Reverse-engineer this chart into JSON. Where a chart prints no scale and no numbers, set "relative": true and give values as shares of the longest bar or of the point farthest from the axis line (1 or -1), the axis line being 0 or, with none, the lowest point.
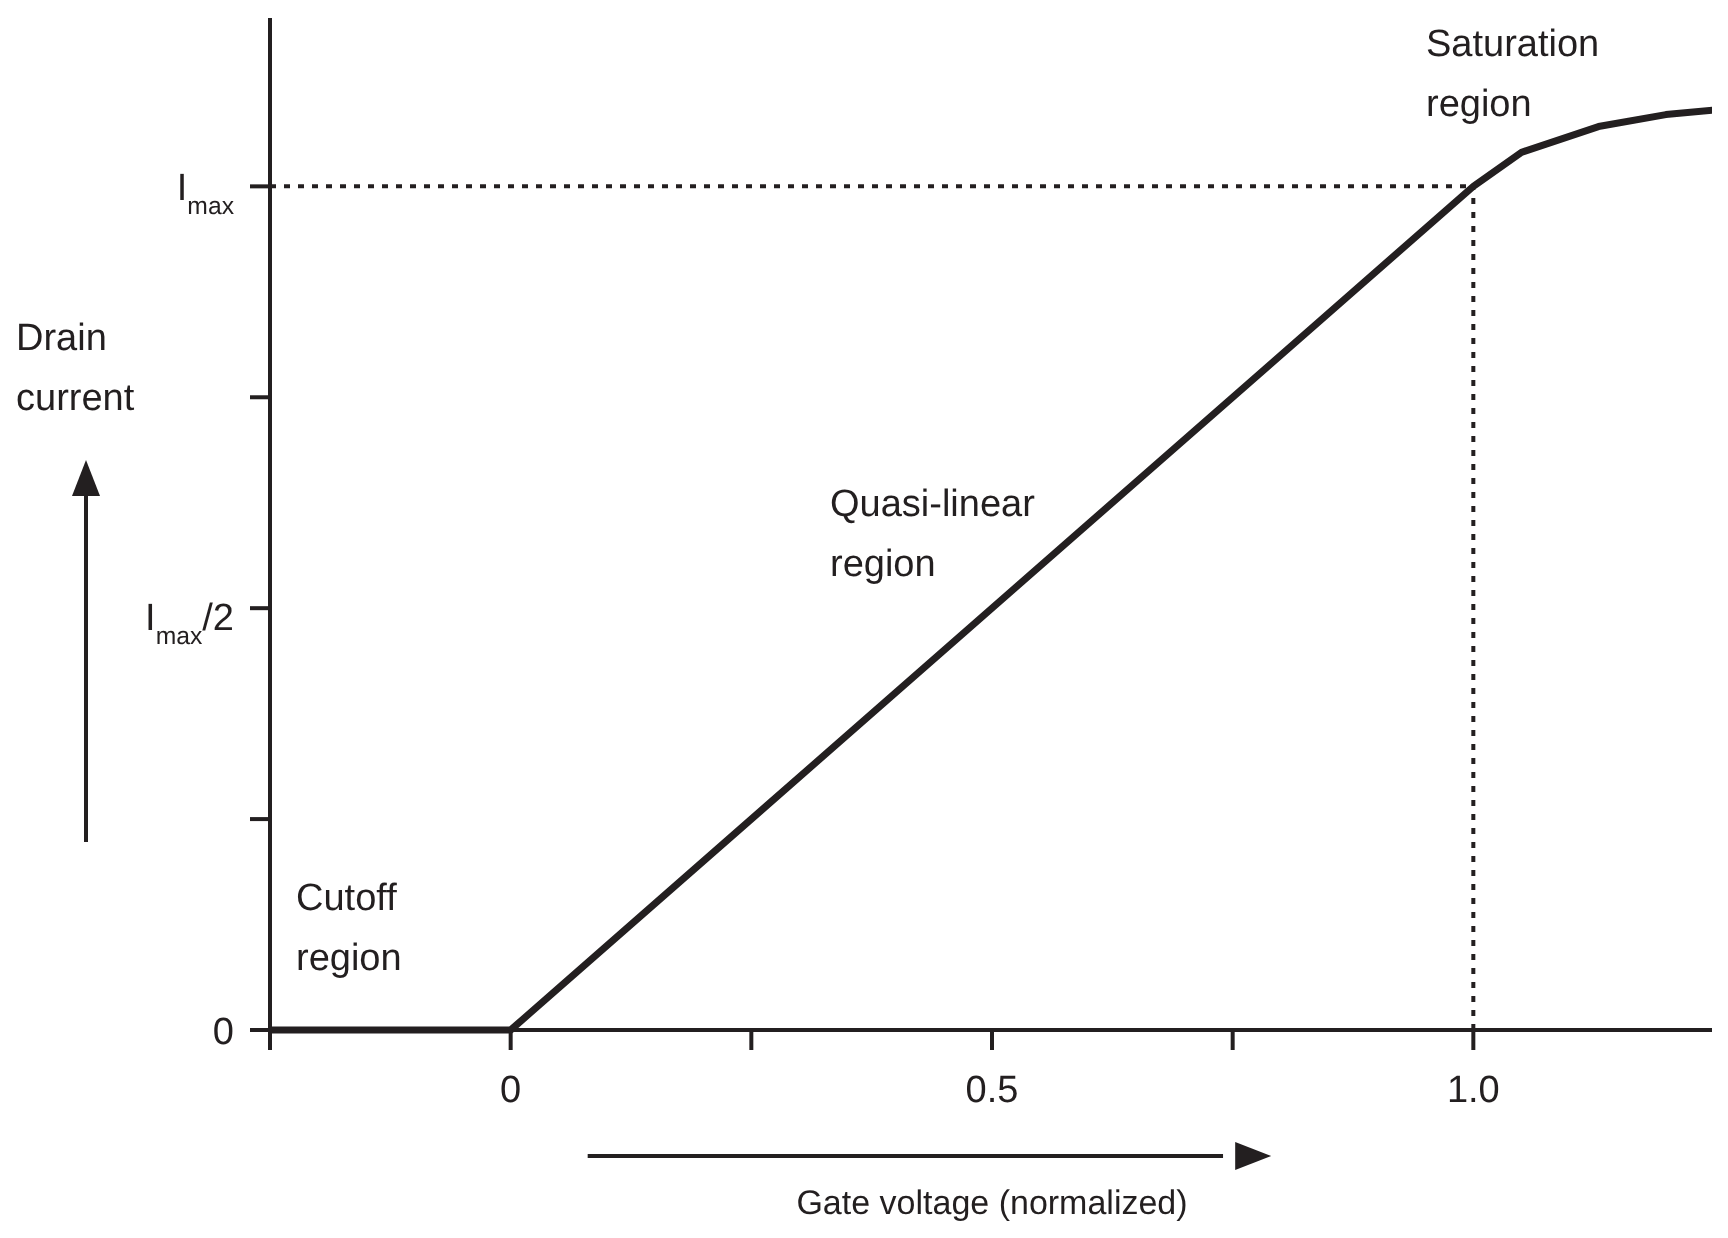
{
  "chart_data": {
    "type": "line",
    "relative": true,
    "x": [
      -0.25,
      0,
      1,
      1.05,
      1.13,
      1.2,
      1.25
    ],
    "series": [
      {
        "color": "#231f20",
        "values": [
          0,
          0,
          0.917,
          0.954,
          0.982,
          0.995,
          1
        ]
      }
    ],
    "xlim": [
      -0.25,
      1.25
    ],
    "xticks": [
      {
        "value": -0.25,
        "label": null
      },
      0,
      {
        "value": 0.25,
        "label": null
      },
      0.5,
      {
        "value": 0.75,
        "label": null
      },
      {
        "value": 1,
        "label": "1.0"
      },
      {
        "value": 1.25,
        "label": null
      }
    ],
    "xlabel": "Gate voltage (normalized)",
    "ylabel": "Drain current",
    "ref_lines": [
      {
        "axis": "y",
        "value": 0.917,
        "label": "I$_{max}$",
        "line_style": "dotted",
        "color": "#231f20"
      },
      {
        "axis": "x",
        "value": 1,
        "line_style": "dotted",
        "color": "#231f20"
      }
    ],
    "annotations": [
      "Cutoff\nregion",
      "Quasi-linear\nregion",
      "Saturation\nregion",
      "0",
      "I$_{max}$/2"
    ],
    "marker": "none",
    "line_style": "solid"
  }
}
